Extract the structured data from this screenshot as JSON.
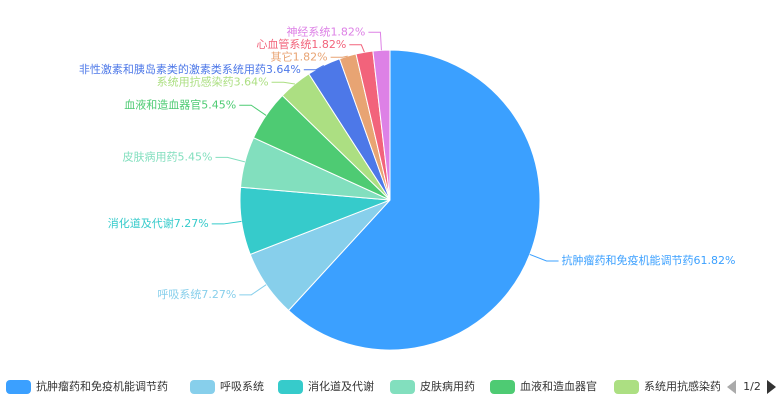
{
  "chart_data": {
    "type": "pie",
    "categories": [
      "抗肿瘤药和免疫机能调节药",
      "呼吸系统",
      "消化道及代谢",
      "皮肤病用药",
      "血液和造血器官",
      "系统用抗感染药",
      "非性激素和胰岛素类的激素类系统用药",
      "其它",
      "心血管系统",
      "神经系统"
    ],
    "values": [
      61.82,
      7.27,
      7.27,
      5.45,
      5.45,
      3.64,
      3.64,
      1.82,
      1.82,
      1.82
    ],
    "value_labels": [
      "61.82%",
      "7.27%",
      "7.27%",
      "5.45%",
      "5.45%",
      "3.64%",
      "3.64%",
      "1.82%",
      "1.82%",
      "1.82%"
    ],
    "colors": [
      "#3ba0ff",
      "#87cfeb",
      "#36cbcb",
      "#82dfbe",
      "#4ecb73",
      "#acdf82",
      "#4d78e8",
      "#e8a473",
      "#f2637b",
      "#dd81e6"
    ],
    "legend_page": "1/2"
  }
}
